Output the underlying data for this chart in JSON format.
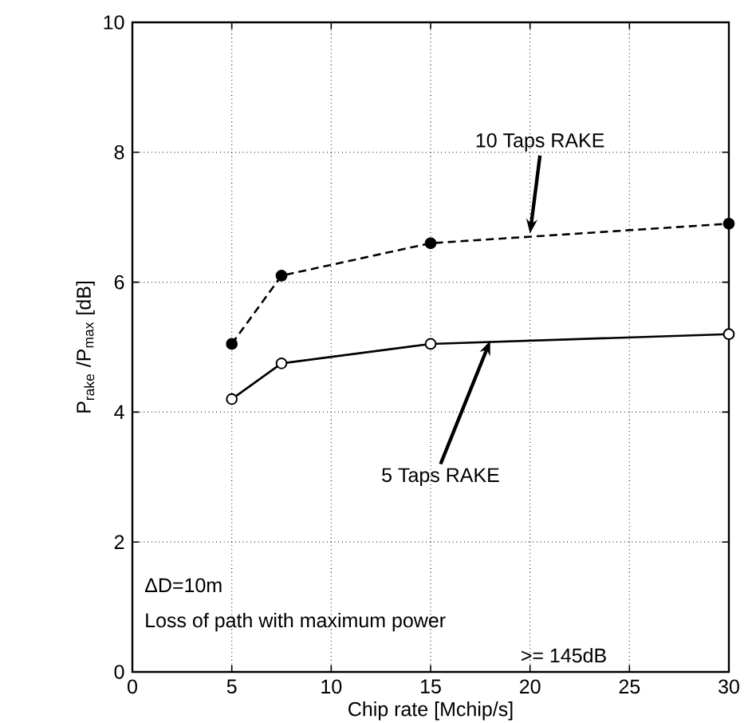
{
  "chart_data": {
    "type": "line",
    "xlabel": "Chip rate [Mchip/s]",
    "ylabel": "P$_{rake}$ /P$_{max}$ [dB]",
    "xlim": [
      0,
      30
    ],
    "ylim": [
      0,
      10
    ],
    "xticks": [
      0,
      5,
      10,
      15,
      20,
      25,
      30
    ],
    "yticks": [
      0,
      2,
      4,
      6,
      8,
      10
    ],
    "grid": true,
    "marker": "circle",
    "series": [
      {
        "x": [
          5,
          7.5,
          15,
          30
        ],
        "values": [
          5.05,
          6.1,
          6.6,
          6.9
        ],
        "color": "#000000",
        "line_style": "dashed"
      },
      {
        "x": [
          5,
          7.5,
          15,
          30
        ],
        "values": [
          4.2,
          4.75,
          5.05,
          5.2
        ],
        "color": "#000000",
        "line_style": "solid"
      }
    ],
    "annotations": [
      {
        "text": "10 Taps RAKE",
        "x": 20,
        "y": 6.75
      },
      {
        "text": "5 Taps RAKE",
        "x": 18,
        "y": 5.1
      },
      "ΔD=10m",
      "Loss of path with maximum power",
      ">= 145dB"
    ]
  }
}
